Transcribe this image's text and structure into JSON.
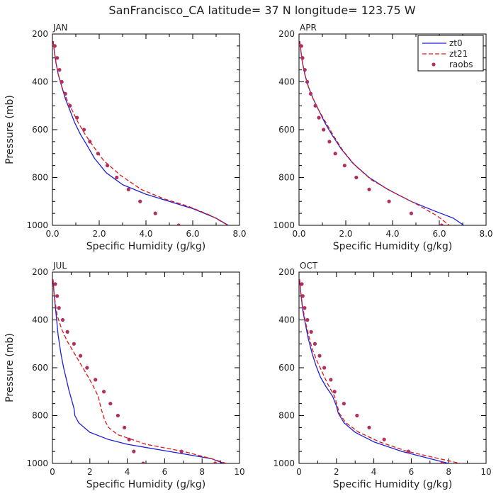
{
  "title": "SanFrancisco_CA  latitude= 37 N longitude= 123.75 W",
  "legend": {
    "entries": [
      {
        "name": "zt0",
        "style": "solid",
        "color": "#1f1fd6"
      },
      {
        "name": "zt21",
        "style": "dashed",
        "color": "#e01818"
      },
      {
        "name": "raobs",
        "style": "dots",
        "color": "#b03060"
      }
    ]
  },
  "chart_data": [
    {
      "type": "line",
      "panel_label": "JAN",
      "xlabel": "Specific Humidity (g/kg)",
      "ylabel": "Pressure (mb)",
      "xlim": [
        0,
        8
      ],
      "ylim": [
        1000,
        200
      ],
      "xticks": [
        "0.0",
        "2.0",
        "4.0",
        "6.0",
        "8.0"
      ],
      "yticks": [
        "200",
        "400",
        "600",
        "800",
        "1000"
      ],
      "series": [
        {
          "name": "zt0",
          "style": "solid",
          "x": [
            0.03,
            0.08,
            0.15,
            0.25,
            0.4,
            0.55,
            0.75,
            0.95,
            1.2,
            1.45,
            1.8,
            2.3,
            3.0,
            4.0,
            5.0,
            6.0,
            7.0,
            7.7
          ],
          "y": [
            230,
            270,
            320,
            370,
            420,
            470,
            520,
            570,
            620,
            660,
            720,
            780,
            830,
            870,
            900,
            930,
            970,
            1010
          ]
        },
        {
          "name": "zt21",
          "style": "dashed",
          "x": [
            0.03,
            0.08,
            0.15,
            0.25,
            0.4,
            0.6,
            0.85,
            1.1,
            1.4,
            1.75,
            2.2,
            2.9,
            3.8,
            4.8,
            5.8,
            6.8,
            7.5
          ],
          "y": [
            230,
            270,
            320,
            370,
            420,
            470,
            520,
            570,
            620,
            670,
            730,
            790,
            850,
            890,
            920,
            960,
            1000
          ]
        },
        {
          "name": "raobs",
          "style": "dots",
          "x": [
            0.1,
            0.2,
            0.3,
            0.4,
            0.55,
            0.75,
            1.05,
            1.35,
            1.6,
            1.95,
            2.35,
            2.75,
            3.25,
            3.75,
            4.4,
            5.4
          ],
          "y": [
            250,
            300,
            350,
            400,
            450,
            500,
            550,
            600,
            650,
            700,
            750,
            800,
            850,
            900,
            950,
            1000
          ]
        }
      ]
    },
    {
      "type": "line",
      "panel_label": "APR",
      "xlabel": "Specific Humidity (g/kg)",
      "ylabel": "",
      "xlim": [
        0,
        8
      ],
      "ylim": [
        1000,
        200
      ],
      "xticks": [
        "0.0",
        "2.0",
        "4.0",
        "6.0",
        "8.0"
      ],
      "yticks": [
        "200",
        "400",
        "600",
        "800",
        "1000"
      ],
      "series": [
        {
          "name": "zt0",
          "style": "solid",
          "x": [
            0.03,
            0.08,
            0.15,
            0.25,
            0.4,
            0.6,
            0.85,
            1.1,
            1.4,
            1.8,
            2.3,
            3.0,
            3.8,
            4.8,
            5.8,
            6.6,
            7.2
          ],
          "y": [
            230,
            270,
            320,
            370,
            420,
            470,
            520,
            570,
            620,
            680,
            740,
            800,
            850,
            900,
            940,
            970,
            1010
          ]
        },
        {
          "name": "zt21",
          "style": "dashed",
          "x": [
            0.03,
            0.08,
            0.15,
            0.25,
            0.4,
            0.6,
            0.85,
            1.15,
            1.5,
            1.9,
            2.4,
            3.1,
            4.0,
            5.0,
            5.9,
            6.5
          ],
          "y": [
            230,
            270,
            320,
            370,
            420,
            470,
            520,
            570,
            630,
            690,
            750,
            810,
            860,
            910,
            960,
            1005
          ]
        },
        {
          "name": "raobs",
          "style": "dots",
          "x": [
            0.1,
            0.15,
            0.25,
            0.35,
            0.5,
            0.7,
            0.85,
            1.05,
            1.3,
            1.55,
            1.95,
            2.45,
            3.0,
            3.85,
            4.8,
            6.1
          ],
          "y": [
            250,
            300,
            350,
            400,
            450,
            500,
            550,
            600,
            650,
            700,
            750,
            800,
            850,
            900,
            950,
            1000
          ]
        }
      ]
    },
    {
      "type": "line",
      "panel_label": "JUL",
      "xlabel": "Specific Humidity (g/kg)",
      "ylabel": "Pressure (mb)",
      "xlim": [
        0,
        10
      ],
      "ylim": [
        1000,
        200
      ],
      "xticks": [
        "0",
        "2",
        "4",
        "6",
        "8",
        "10"
      ],
      "yticks": [
        "200",
        "400",
        "600",
        "800",
        "1000"
      ],
      "series": [
        {
          "name": "zt0",
          "style": "solid",
          "x": [
            0.03,
            0.1,
            0.2,
            0.3,
            0.45,
            0.6,
            0.75,
            0.9,
            1.05,
            1.15,
            1.2,
            1.4,
            2.0,
            3.0,
            4.0,
            5.5,
            7.0,
            8.5,
            9.5
          ],
          "y": [
            230,
            300,
            380,
            460,
            540,
            600,
            650,
            700,
            740,
            770,
            800,
            830,
            870,
            900,
            920,
            940,
            960,
            980,
            1010
          ]
        },
        {
          "name": "zt21",
          "style": "dashed",
          "x": [
            0.03,
            0.1,
            0.25,
            0.5,
            0.8,
            1.1,
            1.4,
            1.7,
            2.0,
            2.2,
            2.45,
            2.6,
            2.8,
            3.0,
            3.5,
            5.0,
            7.0,
            8.5,
            9.5
          ],
          "y": [
            230,
            300,
            380,
            440,
            490,
            530,
            570,
            610,
            650,
            680,
            720,
            770,
            820,
            850,
            880,
            920,
            950,
            980,
            1005
          ]
        },
        {
          "name": "raobs",
          "style": "dots",
          "x": [
            0.15,
            0.25,
            0.35,
            0.55,
            0.8,
            1.15,
            1.5,
            1.85,
            2.3,
            2.75,
            3.1,
            3.5,
            3.85,
            4.1,
            4.35,
            4.85,
            6.9,
            8.7
          ],
          "y": [
            250,
            300,
            350,
            400,
            450,
            500,
            550,
            600,
            650,
            700,
            750,
            800,
            850,
            900,
            950,
            1000,
            950,
            1000
          ]
        }
      ]
    },
    {
      "type": "line",
      "panel_label": "OCT",
      "xlabel": "Specific Humidity (g/kg)",
      "ylabel": "",
      "xlim": [
        0,
        10
      ],
      "ylim": [
        1000,
        200
      ],
      "xticks": [
        "0",
        "2",
        "4",
        "6",
        "8",
        "10"
      ],
      "yticks": [
        "200",
        "400",
        "600",
        "800",
        "1000"
      ],
      "series": [
        {
          "name": "zt0",
          "style": "solid",
          "x": [
            0.03,
            0.1,
            0.2,
            0.35,
            0.5,
            0.7,
            0.9,
            1.15,
            1.45,
            1.8,
            2.0,
            2.1,
            2.4,
            3.0,
            4.0,
            5.5,
            7.0,
            8.5
          ],
          "y": [
            230,
            290,
            360,
            420,
            480,
            540,
            590,
            640,
            680,
            720,
            760,
            790,
            830,
            870,
            910,
            950,
            980,
            1010
          ]
        },
        {
          "name": "zt21",
          "style": "dashed",
          "x": [
            0.03,
            0.1,
            0.2,
            0.35,
            0.5,
            0.7,
            0.95,
            1.25,
            1.55,
            1.9,
            2.05,
            2.15,
            2.5,
            3.2,
            4.3,
            5.8,
            7.5,
            9.2
          ],
          "y": [
            230,
            290,
            350,
            410,
            460,
            520,
            570,
            620,
            670,
            720,
            760,
            790,
            830,
            870,
            910,
            950,
            980,
            1010
          ]
        },
        {
          "name": "raobs",
          "style": "dots",
          "x": [
            0.15,
            0.2,
            0.3,
            0.45,
            0.65,
            0.85,
            1.1,
            1.35,
            1.7,
            1.9,
            2.4,
            3.1,
            3.75,
            4.55,
            5.85,
            7.65
          ],
          "y": [
            250,
            300,
            350,
            400,
            450,
            500,
            550,
            600,
            650,
            700,
            750,
            800,
            850,
            900,
            950,
            1000
          ]
        }
      ]
    }
  ]
}
